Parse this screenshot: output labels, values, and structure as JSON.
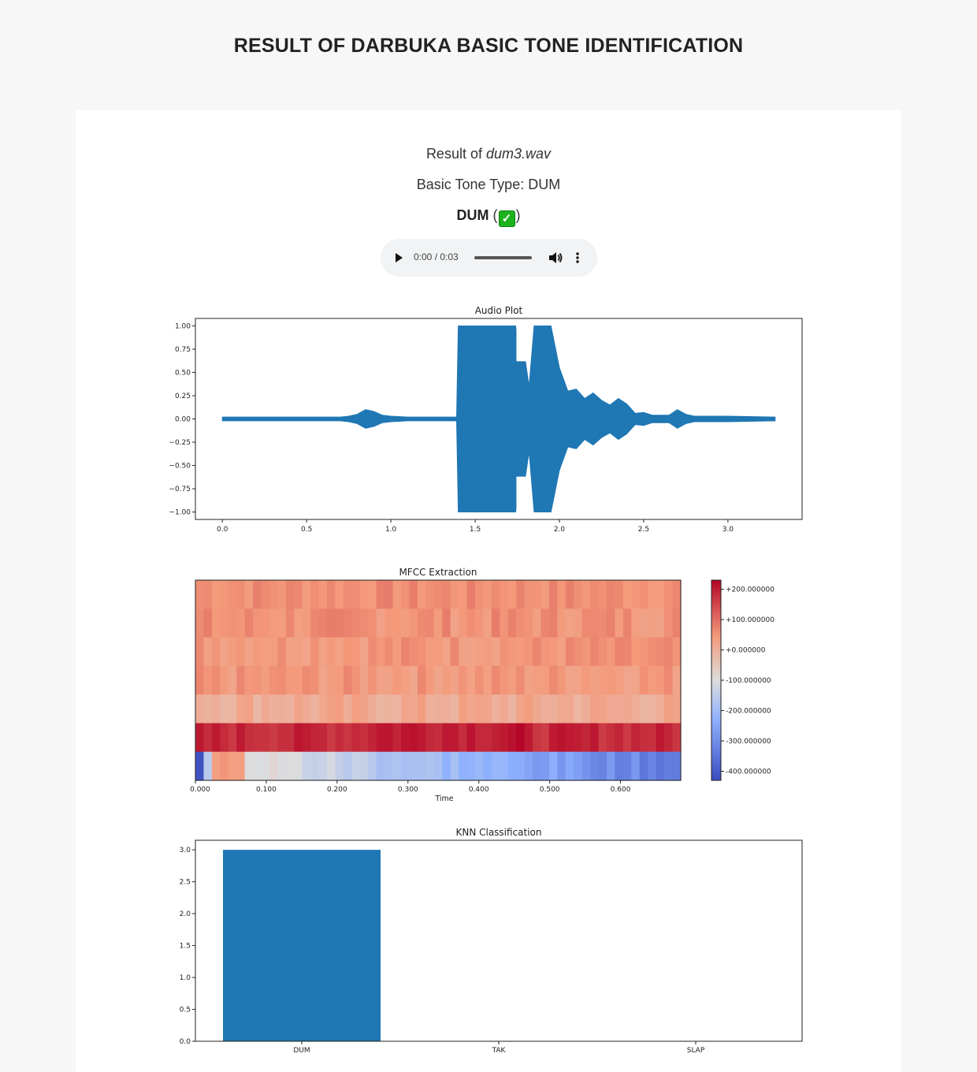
{
  "page": {
    "title": "RESULT OF DARBUKA BASIC TONE IDENTIFICATION"
  },
  "result": {
    "prefix": "Result of",
    "filename": "dum3.wav",
    "tone_type": "Basic Tone Type: DUM",
    "predicted": "DUM",
    "paren_open": "(",
    "paren_close": ")",
    "check_glyph": "✓"
  },
  "audio_player": {
    "time": "0:00 / 0:03",
    "progress": 0
  },
  "colors": {
    "series": "#1f77b4",
    "cmap_low": "#3b4cc0",
    "cmap_mid": "#dddddd",
    "cmap_high": "#b40426"
  },
  "chart_data": [
    {
      "type": "line",
      "title": "Audio Plot",
      "xlabel": "",
      "ylabel": "",
      "xlim": [
        -0.16,
        3.44
      ],
      "ylim": [
        -1.08,
        1.08
      ],
      "x_ticks": [
        "0.0",
        "0.5",
        "1.0",
        "1.5",
        "2.0",
        "2.5",
        "3.0"
      ],
      "y_ticks": [
        "1.00",
        "0.75",
        "0.50",
        "0.25",
        "0.00",
        "−0.25",
        "−0.50",
        "−0.75",
        "−1.00"
      ],
      "envelope_x": [
        0.0,
        0.3,
        0.7,
        0.75,
        0.8,
        0.85,
        0.9,
        0.95,
        1.0,
        1.1,
        1.2,
        1.3,
        1.39,
        1.4,
        1.6,
        1.74,
        1.75,
        1.77,
        1.79,
        1.8,
        1.82,
        1.85,
        1.88,
        1.95,
        2.0,
        2.05,
        2.1,
        2.15,
        2.2,
        2.25,
        2.3,
        2.35,
        2.4,
        2.45,
        2.5,
        2.55,
        2.6,
        2.65,
        2.7,
        2.75,
        2.8,
        3.0,
        3.28
      ],
      "envelope_y": [
        0.02,
        0.02,
        0.02,
        0.03,
        0.05,
        0.1,
        0.08,
        0.04,
        0.03,
        0.02,
        0.02,
        0.02,
        0.02,
        1.0,
        1.0,
        1.0,
        0.85,
        0.6,
        0.7,
        0.6,
        0.35,
        1.0,
        1.0,
        1.0,
        0.55,
        0.3,
        0.32,
        0.22,
        0.28,
        0.2,
        0.15,
        0.22,
        0.16,
        0.06,
        0.07,
        0.04,
        0.04,
        0.04,
        0.1,
        0.05,
        0.03,
        0.03,
        0.02
      ]
    },
    {
      "type": "heatmap",
      "title": "MFCC Extraction",
      "xlabel": "Time",
      "ylabel": "",
      "x_ticks": [
        "0.000",
        "0.100",
        "0.200",
        "0.300",
        "0.400",
        "0.500",
        "0.600"
      ],
      "colorbar_ticks": [
        "+200.000000",
        "+100.000000",
        "+0.000000",
        "-100.000000",
        "-200.000000",
        "-300.000000",
        "-400.000000"
      ],
      "clim": [
        -430,
        230
      ],
      "n_frames": 59,
      "rows": [
        {
          "base": 60,
          "spread": 22
        },
        {
          "base": 55,
          "spread": 28
        },
        {
          "base": 50,
          "spread": 26
        },
        {
          "base": 45,
          "spread": 26
        },
        {
          "base": 10,
          "spread": 30
        },
        {
          "base": 185,
          "spread": 25
        },
        {
          "base": -230,
          "spread": 80
        }
      ]
    },
    {
      "type": "bar",
      "title": "KNN Classification",
      "categories": [
        "DUM",
        "TAK",
        "SLAP"
      ],
      "values": [
        3,
        0,
        0
      ],
      "ylim": [
        0,
        3.15
      ],
      "y_ticks": [
        "3.0",
        "2.5",
        "2.0",
        "1.5",
        "1.0",
        "0.5",
        "0.0"
      ]
    }
  ]
}
